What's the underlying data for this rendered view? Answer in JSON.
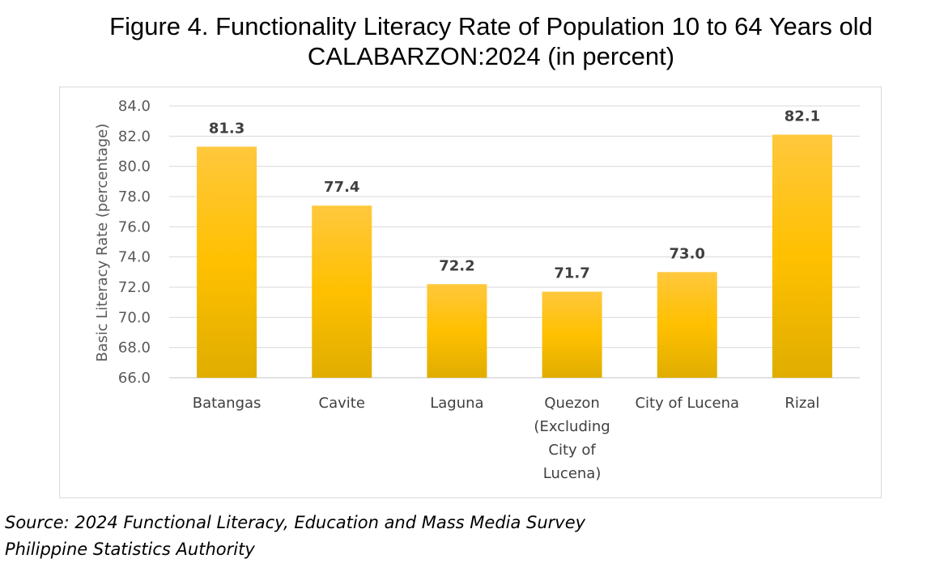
{
  "title": {
    "line1": "Figure 4.  Functionality Literacy Rate of Population 10 to 64 Years old",
    "line2": "CALABARZON:2024 (in percent)"
  },
  "source": {
    "line1": "Source: 2024 Functional Literacy, Education and Mass Media Survey",
    "line2": "Philippine Statistics Authority"
  },
  "colors": {
    "bar_top": "#ffc83d",
    "bar_mid": "#ffc000",
    "bar_bottom": "#e0ad00",
    "grid": "#d9d9d9"
  },
  "chart_data": {
    "type": "bar",
    "title": "Figure 4.  Functionality Literacy Rate of Population 10 to 64 Years old CALABARZON:2024 (in percent)",
    "ylabel": "Basic Literacy Rate (percentage)",
    "xlabel": "",
    "ylim": [
      66.0,
      84.0
    ],
    "yticks": [
      "66.0",
      "68.0",
      "70.0",
      "72.0",
      "74.0",
      "76.0",
      "78.0",
      "80.0",
      "82.0",
      "84.0"
    ],
    "categories": [
      [
        "Batangas"
      ],
      [
        "Cavite"
      ],
      [
        "Laguna"
      ],
      [
        "Quezon",
        "(Excluding",
        "City of",
        "Lucena)"
      ],
      [
        "City of Lucena"
      ],
      [
        "Rizal"
      ]
    ],
    "values": [
      81.3,
      77.4,
      72.2,
      71.7,
      73.0,
      82.1
    ],
    "data_labels": [
      "81.3",
      "77.4",
      "72.2",
      "71.7",
      "73.0",
      "82.1"
    ],
    "grid": true,
    "legend": "none"
  }
}
